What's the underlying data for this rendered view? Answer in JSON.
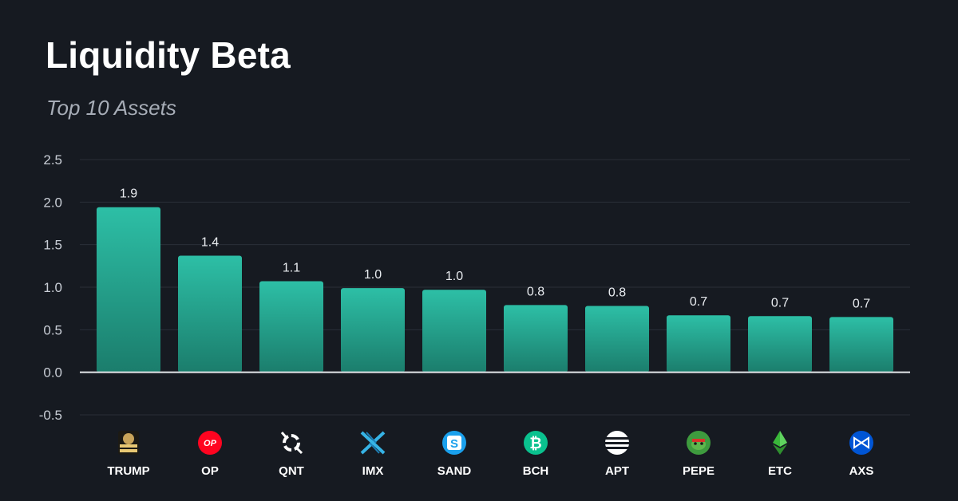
{
  "chart_data": {
    "type": "bar",
    "title": "Liquidity Beta",
    "subtitle": "Top 10 Assets",
    "xlabel": "",
    "ylabel": "",
    "categories": [
      "TRUMP",
      "OP",
      "QNT",
      "IMX",
      "SAND",
      "BCH",
      "APT",
      "PEPE",
      "ETC",
      "AXS"
    ],
    "values": [
      1.94,
      1.37,
      1.07,
      0.99,
      0.97,
      0.79,
      0.78,
      0.67,
      0.66,
      0.65
    ],
    "data_labels": [
      "1.9",
      "1.4",
      "1.1",
      "1.0",
      "1.0",
      "0.8",
      "0.8",
      "0.7",
      "0.7",
      "0.7"
    ],
    "ylim": [
      -0.5,
      2.5
    ],
    "yticks": [
      -0.5,
      0.0,
      0.5,
      1.0,
      1.5,
      2.0,
      2.5
    ],
    "ytick_labels": [
      "-0.5",
      "0.0",
      "0.5",
      "1.0",
      "1.5",
      "2.0",
      "2.5"
    ],
    "grid": true,
    "icons": [
      "trump-fight-icon",
      "op-icon",
      "qnt-icon",
      "imx-icon",
      "sand-icon",
      "bch-icon",
      "apt-icon",
      "pepe-icon",
      "etc-icon",
      "axs-icon"
    ],
    "icon_text": {
      "op": "OP",
      "sand": "S",
      "bch": "₿"
    },
    "colors": {
      "background": "#161a21",
      "bar_top": "#2dbfa6",
      "bar_bottom": "#1b7d6c",
      "grid": "#2a2f38",
      "zero_line": "#e4e6ea"
    }
  }
}
